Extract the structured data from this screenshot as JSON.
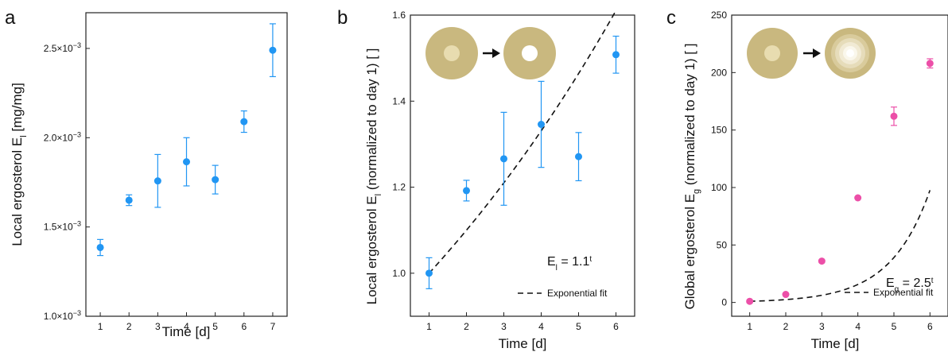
{
  "chart_data": [
    {
      "type": "scatter",
      "panel_label": "a",
      "xlabel": "Time  [d]",
      "ylabel_main": "Local ergosterol E",
      "ylabel_sub": "l",
      "ylabel_tail": " [mg/mg]",
      "xlim": [
        0.5,
        7.5
      ],
      "ylim": [
        0.001,
        0.0027
      ],
      "xticks": [
        "1",
        "2",
        "3",
        "4",
        "5",
        "6",
        "7"
      ],
      "yticks": [
        {
          "value": 0.001,
          "mant": "1.0×10",
          "exp": "−3"
        },
        {
          "value": 0.0015,
          "mant": "1.5×10",
          "exp": "−3"
        },
        {
          "value": 0.002,
          "mant": "2.0×10",
          "exp": "−3"
        },
        {
          "value": 0.0025,
          "mant": "2.5×10",
          "exp": "−3"
        }
      ],
      "color": "#2196f3",
      "x": [
        1,
        2,
        3,
        4,
        5,
        6,
        7
      ],
      "y": [
        0.001385,
        0.00165,
        0.001758,
        0.001865,
        0.001765,
        0.00209,
        0.00249
      ],
      "err": [
        4.5e-05,
        3e-05,
        0.000148,
        0.000135,
        8e-05,
        6e-05,
        0.000148
      ]
    },
    {
      "type": "scatter",
      "panel_label": "b",
      "xlabel": "Time  [d]",
      "ylabel_main": "Local ergosterol E",
      "ylabel_sub": "l",
      "ylabel_tail": " (normalized to day 1)  [ ]",
      "xlim": [
        0.5,
        6.5
      ],
      "ylim": [
        0.9,
        1.6
      ],
      "xticks": [
        "1",
        "2",
        "3",
        "4",
        "5",
        "6"
      ],
      "yticks": [
        {
          "value": 1.0,
          "label": "1.0"
        },
        {
          "value": 1.2,
          "label": "1.2"
        },
        {
          "value": 1.4,
          "label": "1.4"
        },
        {
          "value": 1.6,
          "label": "1.6"
        }
      ],
      "color": "#2196f3",
      "x": [
        1,
        2,
        3,
        4,
        5,
        6
      ],
      "y": [
        1.0,
        1.192,
        1.266,
        1.346,
        1.271,
        1.508
      ],
      "err": [
        0.036,
        0.024,
        0.108,
        0.1,
        0.056,
        0.043
      ],
      "fit_base": 1.1,
      "annotation_main": "E",
      "annotation_sub": "l",
      "annotation_tail": " = 1.1",
      "annotation_sup": "t",
      "legend": "Exponential fit"
    },
    {
      "type": "scatter",
      "panel_label": "c",
      "xlabel": "Time  [d]",
      "ylabel_main": "Global ergosterol E",
      "ylabel_sub": "g",
      "ylabel_tail": " (normalized to day 1)  [ ]",
      "xlim": [
        0.5,
        6.5
      ],
      "ylim": [
        -12,
        250
      ],
      "xticks": [
        "1",
        "2",
        "3",
        "4",
        "5",
        "6"
      ],
      "yticks": [
        {
          "value": 0,
          "label": "0"
        },
        {
          "value": 50,
          "label": "50"
        },
        {
          "value": 100,
          "label": "100"
        },
        {
          "value": 150,
          "label": "150"
        },
        {
          "value": 200,
          "label": "200"
        },
        {
          "value": 250,
          "label": "250"
        }
      ],
      "color": "#ec4fa8",
      "x": [
        1,
        2,
        3,
        4,
        5,
        6
      ],
      "y": [
        1,
        7,
        36,
        91,
        162,
        208
      ],
      "err": [
        0,
        0,
        0,
        0,
        8,
        4
      ],
      "fit_base": 2.5,
      "annotation_main": "E",
      "annotation_sub": "g",
      "annotation_tail": " = 2.5",
      "annotation_sup": "t",
      "legend": "Exponential fit"
    }
  ]
}
